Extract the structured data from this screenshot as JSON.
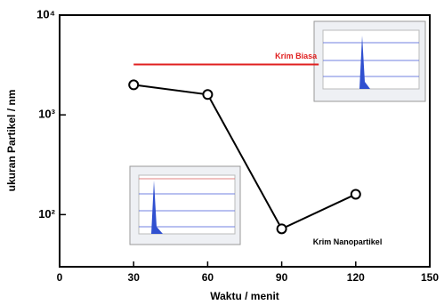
{
  "chart_data": {
    "type": "line",
    "log_y": true,
    "x_label": "Waktu / menit",
    "y_label": "ukuran Partikel / nm",
    "xlim": [
      0,
      150
    ],
    "xticks": [
      0,
      30,
      60,
      90,
      120,
      150
    ],
    "ylim": [
      30,
      10000
    ],
    "yticks": [
      {
        "value": 100,
        "label": "10²"
      },
      {
        "value": 1000,
        "label": "10³"
      },
      {
        "value": 10000,
        "label": "10⁴"
      }
    ],
    "series": [
      {
        "name": "Krim Nanopartikel",
        "color": "#000000",
        "markers": true,
        "x": [
          30,
          60,
          90,
          120
        ],
        "values": [
          2000,
          1600,
          72,
          160
        ]
      },
      {
        "name": "Krim Biasa",
        "color": "#e02020",
        "markers": false,
        "x": [
          30,
          105
        ],
        "values": [
          3200,
          3200
        ]
      }
    ]
  }
}
